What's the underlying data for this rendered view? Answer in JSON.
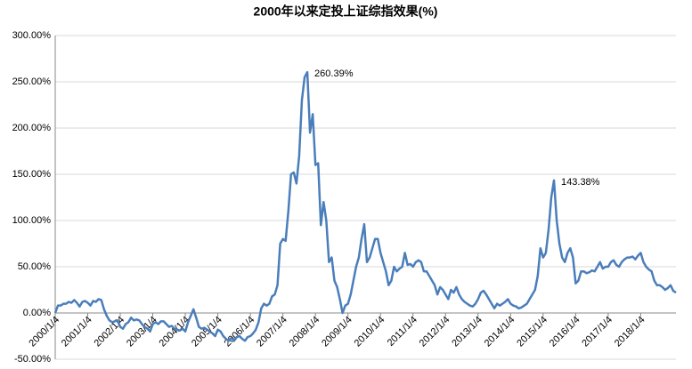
{
  "chart_data": {
    "type": "line",
    "title": "2000年以来定投上证综指效果(%)",
    "categories": [
      "2000/1/4",
      null,
      null,
      null,
      null,
      null,
      null,
      null,
      null,
      null,
      null,
      null,
      "2001/1/4",
      null,
      null,
      null,
      null,
      null,
      null,
      null,
      null,
      null,
      null,
      null,
      "2002/1/4",
      null,
      null,
      null,
      null,
      null,
      null,
      null,
      null,
      null,
      null,
      null,
      "2003/1/4",
      null,
      null,
      null,
      null,
      null,
      null,
      null,
      null,
      null,
      null,
      null,
      "2004/1/4",
      null,
      null,
      null,
      null,
      null,
      null,
      null,
      null,
      null,
      null,
      null,
      "2005/1/4",
      null,
      null,
      null,
      null,
      null,
      null,
      null,
      null,
      null,
      null,
      null,
      "2006/1/4",
      null,
      null,
      null,
      null,
      null,
      null,
      null,
      null,
      null,
      null,
      null,
      "2007/1/4",
      null,
      null,
      null,
      null,
      null,
      null,
      null,
      null,
      null,
      null,
      null,
      "2008/1/4",
      null,
      null,
      null,
      null,
      null,
      null,
      null,
      null,
      null,
      null,
      null,
      "2009/1/4",
      null,
      null,
      null,
      null,
      null,
      null,
      null,
      null,
      null,
      null,
      null,
      "2010/1/4",
      null,
      null,
      null,
      null,
      null,
      null,
      null,
      null,
      null,
      null,
      null,
      "2011/1/4",
      null,
      null,
      null,
      null,
      null,
      null,
      null,
      null,
      null,
      null,
      null,
      "2012/1/4",
      null,
      null,
      null,
      null,
      null,
      null,
      null,
      null,
      null,
      null,
      null,
      "2013/1/4",
      null,
      null,
      null,
      null,
      null,
      null,
      null,
      null,
      null,
      null,
      null,
      "2014/1/4",
      null,
      null,
      null,
      null,
      null,
      null,
      null,
      null,
      null,
      null,
      null,
      "2015/1/4",
      null,
      null,
      null,
      null,
      null,
      null,
      null,
      null,
      null,
      null,
      null,
      "2016/1/4",
      null,
      null,
      null,
      null,
      null,
      null,
      null,
      null,
      null,
      null,
      null,
      "2017/1/4",
      null,
      null,
      null,
      null,
      null,
      null,
      null,
      null,
      null,
      null,
      null,
      "2018/1/4",
      null,
      null,
      null,
      null,
      null,
      null,
      null,
      null,
      null,
      null,
      null,
      null,
      null
    ],
    "series": [
      {
        "color": "#4a7ebb",
        "values": [
          0,
          8,
          8,
          10,
          10,
          12,
          11,
          14,
          11,
          7,
          12,
          13,
          11,
          8,
          13,
          12,
          15,
          14,
          4,
          -3,
          -8,
          -10,
          -9,
          -8,
          -15,
          -17,
          -12,
          -10,
          -5,
          -8,
          -7,
          -8,
          -12,
          -15,
          -17,
          -20,
          -12,
          -10,
          -12,
          -9,
          -9,
          -12,
          -15,
          -14,
          -17,
          -18,
          -19,
          -17,
          -20,
          -10,
          -3,
          4,
          -5,
          -15,
          -17,
          -16,
          -18,
          -20,
          -22,
          -25,
          -18,
          -20,
          -25,
          -28,
          -30,
          -27,
          -30,
          -26,
          -25,
          -28,
          -30,
          -26,
          -25,
          -22,
          -18,
          -10,
          5,
          10,
          8,
          10,
          18,
          20,
          30,
          75,
          80,
          78,
          110,
          150,
          152,
          140,
          170,
          230,
          255,
          260.39,
          195,
          215,
          160,
          162,
          95,
          120,
          100,
          55,
          60,
          35,
          28,
          15,
          0,
          8,
          10,
          20,
          35,
          50,
          60,
          80,
          96,
          55,
          60,
          70,
          80,
          80,
          65,
          55,
          45,
          30,
          35,
          50,
          45,
          48,
          50,
          65,
          52,
          53,
          50,
          55,
          57,
          55,
          45,
          45,
          40,
          35,
          30,
          20,
          28,
          25,
          20,
          15,
          25,
          22,
          28,
          20,
          15,
          12,
          10,
          8,
          7,
          10,
          15,
          22,
          24,
          20,
          15,
          10,
          5,
          10,
          8,
          10,
          12,
          15,
          10,
          8,
          7,
          5,
          6,
          8,
          10,
          15,
          20,
          25,
          40,
          70,
          60,
          65,
          90,
          125,
          143.38,
          100,
          75,
          60,
          55,
          65,
          70,
          60,
          32,
          35,
          45,
          45,
          43,
          44,
          46,
          45,
          50,
          55,
          48,
          50,
          50,
          55,
          57,
          52,
          50,
          55,
          58,
          60,
          60,
          61,
          58,
          62,
          65,
          55,
          50,
          47,
          45,
          35,
          30,
          30,
          28,
          25,
          27,
          30,
          24,
          22
        ],
        "value_labels": [
          null,
          null,
          null,
          null,
          null,
          null,
          null,
          null,
          null,
          null,
          null,
          null,
          null,
          null,
          null,
          null,
          null,
          null,
          null,
          null,
          null,
          null,
          null,
          null,
          null,
          null,
          null,
          null,
          null,
          null,
          null,
          null,
          null,
          null,
          null,
          null,
          null,
          null,
          null,
          null,
          null,
          null,
          null,
          null,
          null,
          null,
          null,
          null,
          null,
          null,
          null,
          null,
          null,
          null,
          null,
          null,
          null,
          null,
          null,
          null,
          null,
          null,
          null,
          null,
          null,
          null,
          null,
          null,
          null,
          null,
          null,
          null,
          null,
          null,
          null,
          null,
          null,
          null,
          null,
          null,
          null,
          null,
          null,
          null,
          null,
          null,
          null,
          null,
          null,
          null,
          null,
          null,
          null,
          "260.39%",
          null,
          null,
          null,
          null,
          null,
          null,
          null,
          null,
          null,
          null,
          null,
          null,
          null,
          null,
          null,
          null,
          null,
          null,
          null,
          null,
          null,
          null,
          null,
          null,
          null,
          null,
          null,
          null,
          null,
          null,
          null,
          null,
          null,
          null,
          null,
          null,
          null,
          null,
          null,
          null,
          null,
          null,
          null,
          null,
          null,
          null,
          null,
          null,
          null,
          null,
          null,
          null,
          null,
          null,
          null,
          null,
          null,
          null,
          null,
          null,
          null,
          null,
          null,
          null,
          null,
          null,
          null,
          null,
          null,
          null,
          null,
          null,
          null,
          null,
          null,
          null,
          null,
          null,
          null,
          null,
          null,
          null,
          null,
          null,
          null,
          null,
          null,
          null,
          null,
          null,
          "143.38%",
          null,
          null,
          null,
          null,
          null,
          null,
          null,
          null,
          null,
          null,
          null,
          null,
          null,
          null,
          null,
          null,
          null,
          null,
          null,
          null,
          null,
          null,
          null,
          null,
          null,
          null,
          null,
          null,
          null,
          null,
          null,
          null,
          null,
          null,
          null,
          null,
          null,
          null,
          null,
          null,
          null,
          null,
          null,
          null,
          null
        ]
      }
    ],
    "ylim": [
      -50,
      300
    ],
    "yticks": [
      {
        "value": -50,
        "label": "-50.00%"
      },
      {
        "value": 0,
        "label": "0.00%"
      },
      {
        "value": 50,
        "label": "50.00%"
      },
      {
        "value": 100,
        "label": "100.00%"
      },
      {
        "value": 150,
        "label": "150.00%"
      },
      {
        "value": 200,
        "label": "200.00%"
      },
      {
        "value": 250,
        "label": "250.00%"
      },
      {
        "value": 300,
        "label": "300.00%"
      }
    ],
    "grid": true
  }
}
